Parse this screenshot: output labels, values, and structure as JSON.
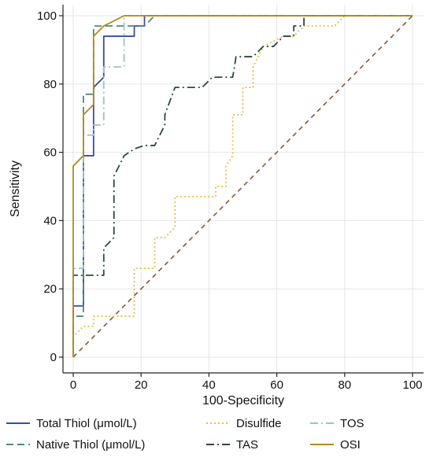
{
  "chart_data": {
    "type": "line",
    "title": "",
    "xlabel": "100-Specificity",
    "ylabel": "Sensitivity",
    "xlim": [
      0,
      100
    ],
    "ylim": [
      0,
      100
    ],
    "x_ticks": [
      0,
      20,
      40,
      60,
      80,
      100
    ],
    "y_ticks": [
      0,
      20,
      40,
      60,
      80,
      100
    ],
    "x_tick_labels": [
      "0",
      "20",
      "40",
      "60",
      "80",
      "100"
    ],
    "y_tick_labels": [
      "0",
      "20",
      "40",
      "60",
      "80",
      "100"
    ],
    "grid": true,
    "legend_position": "bottom",
    "series": [
      {
        "name": "Total Thiol (μmol/L)",
        "color": "#3b4ba8",
        "dash": "solid",
        "points": [
          [
            0,
            0
          ],
          [
            0,
            15
          ],
          [
            3,
            15
          ],
          [
            3,
            59
          ],
          [
            6,
            59
          ],
          [
            6,
            79
          ],
          [
            9,
            82
          ],
          [
            9,
            94
          ],
          [
            18,
            94
          ],
          [
            18,
            97
          ],
          [
            21,
            97
          ],
          [
            21,
            100
          ],
          [
            100,
            100
          ]
        ]
      },
      {
        "name": "Native Thiol (μmol/L)",
        "color": "#4e8a7a",
        "dash": "dashed",
        "points": [
          [
            0,
            0
          ],
          [
            0,
            12
          ],
          [
            3,
            12
          ],
          [
            3,
            77
          ],
          [
            6,
            77
          ],
          [
            6,
            97
          ],
          [
            18,
            97
          ],
          [
            18,
            97
          ],
          [
            21,
            97
          ],
          [
            24,
            100
          ],
          [
            100,
            100
          ]
        ]
      },
      {
        "name": "Disulfide",
        "color": "#d9c24a",
        "dash": "dotted",
        "points": [
          [
            0,
            0
          ],
          [
            0,
            6
          ],
          [
            3,
            9
          ],
          [
            6,
            9
          ],
          [
            6,
            12
          ],
          [
            18,
            12
          ],
          [
            18,
            26
          ],
          [
            24,
            26
          ],
          [
            24,
            35
          ],
          [
            27,
            35
          ],
          [
            30,
            38
          ],
          [
            30,
            47
          ],
          [
            42,
            47
          ],
          [
            42,
            50
          ],
          [
            45,
            50
          ],
          [
            45,
            56
          ],
          [
            47,
            59
          ],
          [
            47,
            71
          ],
          [
            50,
            71
          ],
          [
            50,
            79
          ],
          [
            53,
            79
          ],
          [
            53,
            85
          ],
          [
            56,
            91
          ],
          [
            62,
            94
          ],
          [
            65,
            94
          ],
          [
            68,
            97
          ],
          [
            77,
            97
          ],
          [
            80,
            100
          ],
          [
            100,
            100
          ]
        ]
      },
      {
        "name": "TAS",
        "color": "#2c4a3c",
        "dash": "dashdot",
        "points": [
          [
            0,
            0
          ],
          [
            0,
            24
          ],
          [
            9,
            24
          ],
          [
            9,
            32
          ],
          [
            12,
            35
          ],
          [
            12,
            53
          ],
          [
            15,
            59
          ],
          [
            18,
            61
          ],
          [
            21,
            62
          ],
          [
            24,
            62
          ],
          [
            27,
            68
          ],
          [
            27,
            71
          ],
          [
            30,
            79
          ],
          [
            38,
            79
          ],
          [
            41,
            82
          ],
          [
            44,
            82
          ],
          [
            47,
            82
          ],
          [
            48,
            88
          ],
          [
            53,
            88
          ],
          [
            56,
            91
          ],
          [
            59,
            91
          ],
          [
            62,
            94
          ],
          [
            65,
            94
          ],
          [
            65,
            97
          ],
          [
            68,
            97
          ],
          [
            68,
            100
          ],
          [
            100,
            100
          ]
        ]
      },
      {
        "name": "TOS",
        "color": "#9cc4c0",
        "dash": "dashdot",
        "points": [
          [
            0,
            0
          ],
          [
            0,
            26
          ],
          [
            3,
            26
          ],
          [
            3,
            65
          ],
          [
            6,
            65
          ],
          [
            6,
            68
          ],
          [
            9,
            68
          ],
          [
            9,
            85
          ],
          [
            12,
            85
          ],
          [
            15,
            85
          ],
          [
            15,
            100
          ],
          [
            100,
            100
          ]
        ]
      },
      {
        "name": "OSI",
        "color": "#b08a1c",
        "dash": "solid",
        "points": [
          [
            0,
            0
          ],
          [
            0,
            56
          ],
          [
            3,
            59
          ],
          [
            3,
            71
          ],
          [
            6,
            74
          ],
          [
            6,
            94
          ],
          [
            9,
            97
          ],
          [
            15,
            100
          ],
          [
            100,
            100
          ]
        ]
      }
    ],
    "reference_line": {
      "color": "#8c5535",
      "dash": "dashed",
      "points": [
        [
          0,
          0
        ],
        [
          100,
          100
        ]
      ]
    }
  }
}
